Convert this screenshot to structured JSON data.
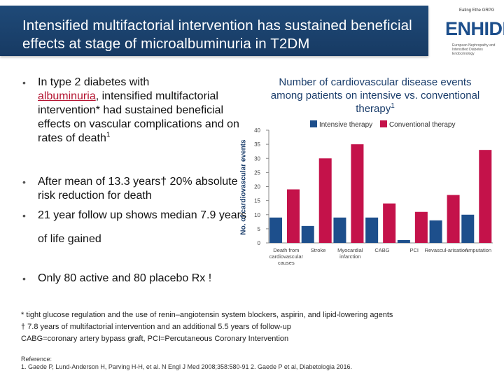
{
  "slide": {
    "title": "Intensified multifactorial intervention has sustained beneficial effects at stage of microalbuminuria in T2DM"
  },
  "logo": {
    "top_text": "Eating Ethe GRPG",
    "brand": "ENHIDE",
    "subtitle": "European Nephropathy and Intensified Diabetes Endocrinology"
  },
  "bullets": {
    "b1_part1": "In type 2 diabetes with",
    "b1_underline": "albuminuria",
    "b1_part2": ", intensified multifactorial intervention* had sustained beneficial effects on vascular complications and on rates of death",
    "b1_sup": "1",
    "b2": "After mean of 13.3 years† 20% absolute risk reduction for death",
    "b3": "21 year follow up shows median 7.9 years of life gained",
    "b4": "Only 80 active and 80 placebo Rx !",
    "dot": "•"
  },
  "chart_data": {
    "type": "bar",
    "title": "Number of cardiovascular disease events among patients on intensive vs. conventional therapy",
    "title_sup": "1",
    "ylabel": "No. of cardiovascular events",
    "ylim": [
      0,
      40
    ],
    "yticks": [
      0,
      5,
      10,
      15,
      20,
      25,
      30,
      35,
      40
    ],
    "categories": [
      "Death from cardiovascular causes",
      "Stroke",
      "Myocardial infarction",
      "CABG",
      "PCI",
      "Revascularisation",
      "Amputation"
    ],
    "category_display": [
      "Death from cardiovascular causes",
      "Stroke",
      "Myocardial infarction",
      "CABG",
      "PCI",
      "Revascul-arisation",
      "Amputation"
    ],
    "series": [
      {
        "name": "Intensive therapy",
        "color": "#1d4f8c",
        "values": [
          9,
          6,
          9,
          9,
          1,
          8,
          10
        ]
      },
      {
        "name": "Conventional therapy",
        "color": "#c4124a",
        "values": [
          19,
          30,
          35,
          14,
          11,
          17,
          33
        ]
      }
    ]
  },
  "footnotes": {
    "line1": "* tight glucose regulation and the use of renin–angiotensin system blockers, aspirin, and lipid-lowering agents",
    "line2": "† 7.8 years of multifactorial intervention and an additional 5.5 years of follow-up",
    "line3": "CABG=coronary artery bypass graft, PCI=Percutaneous Coronary Intervention"
  },
  "reference": {
    "label": "Reference:",
    "text": "1. Gaede P, Lund-Anderson H, Parving H-H, et al. N Engl J Med 2008;358:580-91 2. Gaede P et al, Diabetologia 2016."
  }
}
